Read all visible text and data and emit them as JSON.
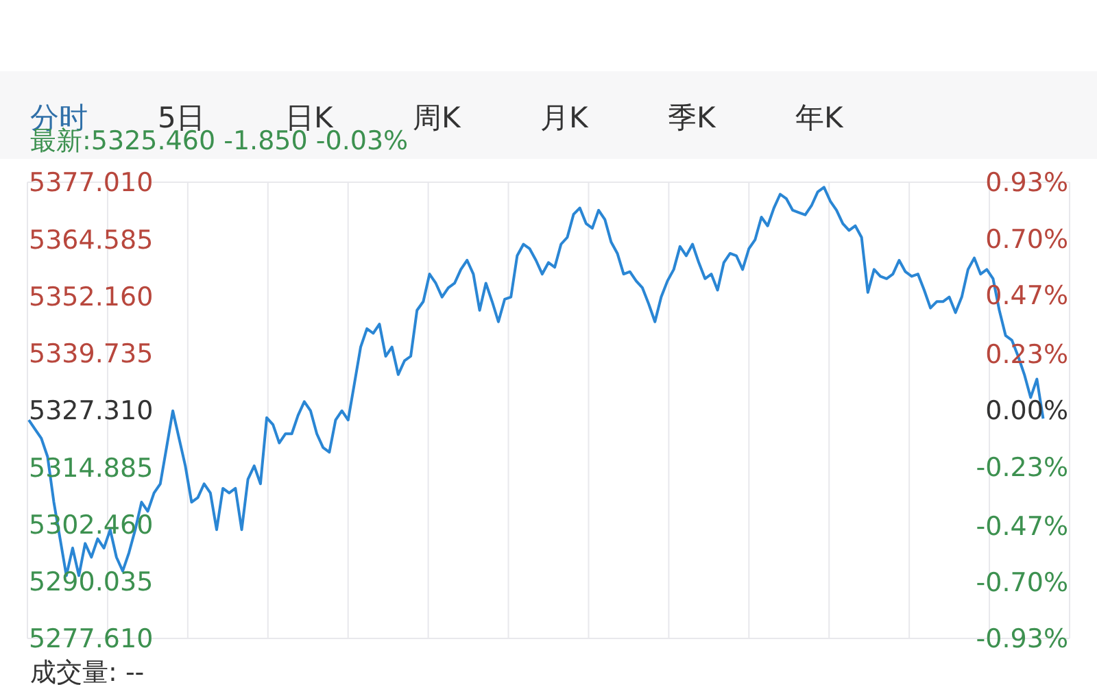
{
  "chart_data": {
    "type": "line",
    "subtitle": "最新:5325.460 -1.850 -0.03%",
    "annotations": [
      "分时",
      "5日",
      "日K",
      "周K",
      "月K",
      "季K",
      "年K",
      "成交量: --"
    ],
    "categories": [
      null,
      null,
      null,
      null,
      null,
      null,
      null,
      null,
      null,
      null,
      null,
      null,
      null,
      null,
      null,
      null,
      null,
      null,
      null,
      null,
      null,
      null,
      null,
      null,
      null,
      null,
      null,
      null,
      null,
      null,
      null,
      null,
      null,
      null,
      null,
      null,
      null,
      null,
      null,
      null,
      null,
      null,
      null,
      null,
      null,
      null,
      null,
      null,
      null,
      null,
      null,
      null,
      null,
      null,
      null,
      null,
      null,
      null,
      null,
      null,
      null,
      null,
      null,
      null,
      null,
      null,
      null,
      null,
      null,
      null,
      null,
      null,
      null,
      null,
      null,
      null,
      null,
      null,
      null,
      null,
      null,
      null,
      null,
      null,
      null,
      null,
      null,
      null,
      null,
      null,
      null,
      null,
      null,
      null,
      null,
      null,
      null,
      null,
      null,
      null,
      null,
      null,
      null,
      null,
      null,
      null,
      null,
      null,
      null,
      null,
      null,
      null,
      null,
      null,
      null,
      null,
      null,
      null,
      null,
      null,
      null,
      null,
      null,
      null,
      null,
      null,
      null,
      null,
      null,
      null,
      null,
      null,
      null,
      null,
      null,
      null,
      null,
      null,
      null,
      null,
      null,
      null,
      null,
      null,
      null,
      null,
      null,
      null,
      null,
      null,
      null,
      null,
      null,
      null,
      null,
      null,
      null,
      null,
      null,
      null,
      null,
      null,
      null,
      null,
      null,
      null,
      null
    ],
    "series": [
      {
        "color": "#2a86d4",
        "values": [
          5325.2,
          5323.2,
          5321.2,
          5317.2,
          5307.3,
          5299.3,
          5291.3,
          5297.3,
          5291.3,
          5298.3,
          5295.3,
          5299.3,
          5297.3,
          5301.3,
          5295.3,
          5292.3,
          5296.3,
          5301.3,
          5307.3,
          5305.3,
          5309.3,
          5311.3,
          5319.2,
          5327.2,
          5321.2,
          5315.2,
          5307.3,
          5308.3,
          5311.3,
          5309.3,
          5301.3,
          5310.3,
          5309.3,
          5310.3,
          5301.3,
          5312.3,
          5315.2,
          5311.3,
          5325.7,
          5324.2,
          5320.2,
          5322.2,
          5322.2,
          5326.2,
          5329.2,
          5327.2,
          5322.2,
          5319.2,
          5318.2,
          5325.2,
          5327.2,
          5325.2,
          5333.1,
          5341.1,
          5345.1,
          5344.1,
          5346.1,
          5339.1,
          5341.1,
          5335.1,
          5338.1,
          5339.1,
          5349.1,
          5351.0,
          5357.0,
          5355.0,
          5352.0,
          5354.0,
          5355.0,
          5358.0,
          5360.0,
          5357.0,
          5349.1,
          5355.0,
          5351.0,
          5346.6,
          5351.5,
          5352.0,
          5361.0,
          5363.5,
          5362.5,
          5360.0,
          5357.0,
          5359.5,
          5358.5,
          5363.5,
          5365.0,
          5370.0,
          5371.4,
          5368.0,
          5367.0,
          5370.9,
          5368.9,
          5364.0,
          5361.5,
          5357.0,
          5357.5,
          5355.5,
          5354.0,
          5350.5,
          5346.6,
          5352.0,
          5355.5,
          5358.0,
          5363.0,
          5361.0,
          5363.5,
          5359.5,
          5356.0,
          5357.0,
          5353.5,
          5359.5,
          5361.5,
          5361.0,
          5358.0,
          5362.5,
          5364.5,
          5369.4,
          5367.5,
          5371.4,
          5374.4,
          5373.4,
          5370.9,
          5370.4,
          5369.9,
          5371.9,
          5374.9,
          5375.9,
          5372.9,
          5370.9,
          5368.0,
          5366.5,
          5367.5,
          5365.0,
          5353.0,
          5358.0,
          5356.5,
          5356.0,
          5357.0,
          5360.0,
          5357.5,
          5356.5,
          5357.0,
          5353.5,
          5349.6,
          5351.0,
          5351.0,
          5352.0,
          5348.6,
          5352.0,
          5358.0,
          5360.5,
          5357.0,
          5358.0,
          5356.0,
          5349.1,
          5343.6,
          5342.6,
          5339.1,
          5335.1,
          5330.1,
          5334.1,
          5325.5,
          null,
          null,
          null,
          null
        ]
      }
    ],
    "ylim": [
      5277.61,
      5377.01
    ],
    "yticks": [
      {
        "value": 5277.61,
        "label": "5277.610"
      },
      {
        "value": 5290.035,
        "label": "5290.035"
      },
      {
        "value": 5302.46,
        "label": "5302.460"
      },
      {
        "value": 5314.885,
        "label": "5314.885"
      },
      {
        "value": 5327.31,
        "label": "5327.310"
      },
      {
        "value": 5339.735,
        "label": "5339.735"
      },
      {
        "value": 5352.16,
        "label": "5352.160"
      },
      {
        "value": 5364.585,
        "label": "5364.585"
      },
      {
        "value": 5377.01,
        "label": "5377.010"
      }
    ],
    "y2lim": [
      -0.93,
      0.93
    ],
    "y2ticks": [
      {
        "value": -0.93,
        "label": "-0.93%"
      },
      {
        "value": -0.7,
        "label": "-0.70%"
      },
      {
        "value": -0.47,
        "label": "-0.47%"
      },
      {
        "value": -0.23,
        "label": "-0.23%"
      },
      {
        "value": 0,
        "label": "0.00%"
      },
      {
        "value": 0.23,
        "label": "0.23%"
      },
      {
        "value": 0.47,
        "label": "0.47%"
      },
      {
        "value": 0.7,
        "label": "0.70%"
      },
      {
        "value": 0.93,
        "label": "0.93%"
      }
    ],
    "tick_labels": "y",
    "grid": true,
    "marker": "none",
    "line_style": "solid"
  }
}
